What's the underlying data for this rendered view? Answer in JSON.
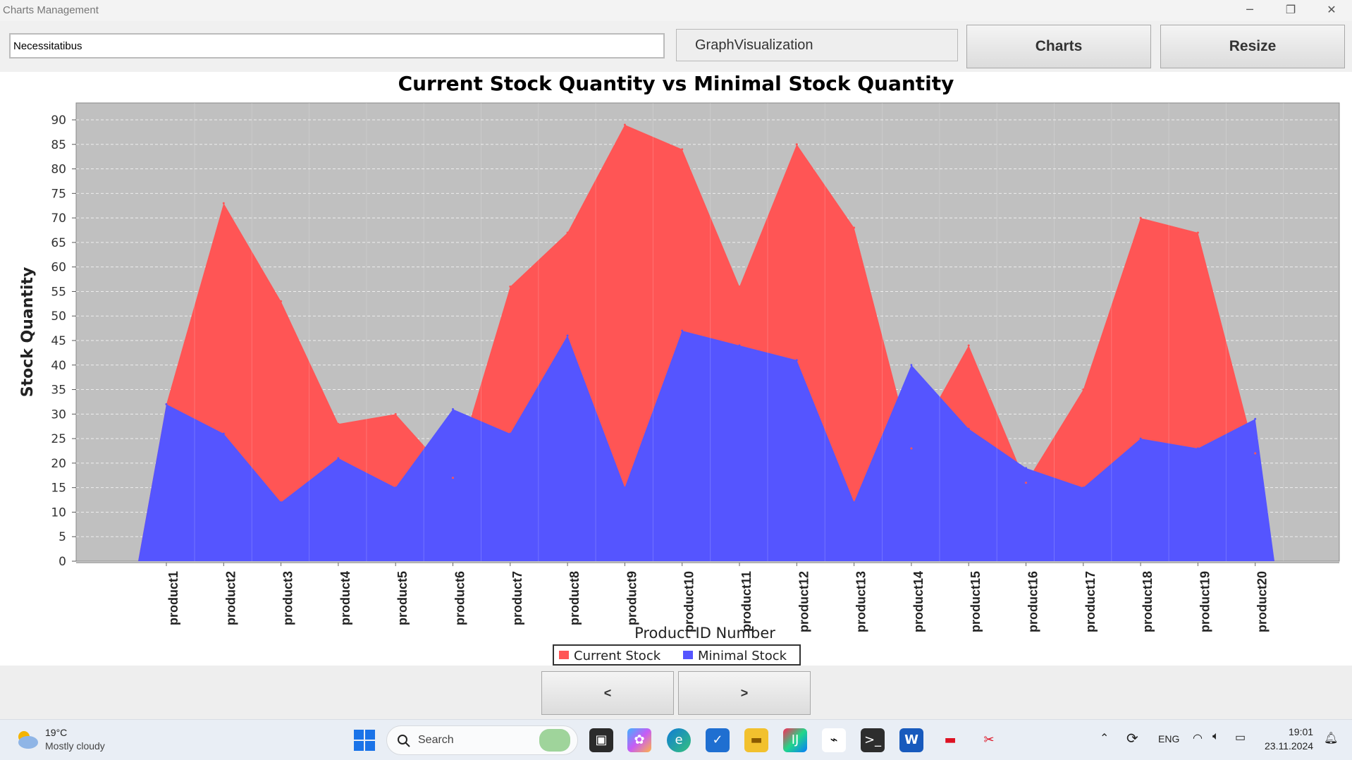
{
  "window": {
    "title": "Charts Management",
    "minimize_glyph": "─",
    "restore_glyph": "❐",
    "close_glyph": "✕"
  },
  "toolbar": {
    "name_input_value": "Necessitatibus",
    "graph_field_value": "GraphVisualization",
    "charts_label": "Charts",
    "resize_label": "Resize"
  },
  "nav": {
    "prev_label": "<",
    "next_label": ">"
  },
  "colors": {
    "current": "#ff5555",
    "minimal": "#5555ff",
    "plot_bg": "#c0c0c0"
  },
  "chart_data": {
    "type": "area",
    "title": "Current Stock Quantity vs Minimal Stock Quantity",
    "xlabel": "Product ID Number",
    "ylabel": "Stock Quantity",
    "ylim": [
      0,
      90
    ],
    "yticks": [
      0,
      5,
      10,
      15,
      20,
      25,
      30,
      35,
      40,
      45,
      50,
      55,
      60,
      65,
      70,
      75,
      80,
      85,
      90
    ],
    "grid": true,
    "legend_placement": "bottom-center",
    "categories": [
      "product1",
      "product2",
      "product3",
      "product4",
      "product5",
      "product6",
      "product7",
      "product8",
      "product9",
      "product10",
      "product11",
      "product12",
      "product13",
      "product14",
      "product15",
      "product16",
      "product17",
      "product18",
      "product19",
      "product20"
    ],
    "series": [
      {
        "name": "Current Stock",
        "color": "#ff5555",
        "values": [
          32,
          73,
          53,
          28,
          30,
          17,
          56,
          67,
          89,
          84,
          56,
          85,
          68,
          23,
          44,
          16,
          35,
          70,
          67,
          22
        ]
      },
      {
        "name": "Minimal Stock",
        "color": "#5555ff",
        "values": [
          32,
          26,
          12,
          21,
          15,
          31,
          26,
          46,
          15,
          47,
          44,
          41,
          12,
          40,
          27,
          19,
          15,
          25,
          23,
          29
        ]
      }
    ]
  },
  "taskbar": {
    "weather_temp": "19°C",
    "weather_desc": "Mostly cloudy",
    "search_placeholder": "Search",
    "lang": "ENG",
    "time": "19:01",
    "date": "23.11.2024"
  }
}
